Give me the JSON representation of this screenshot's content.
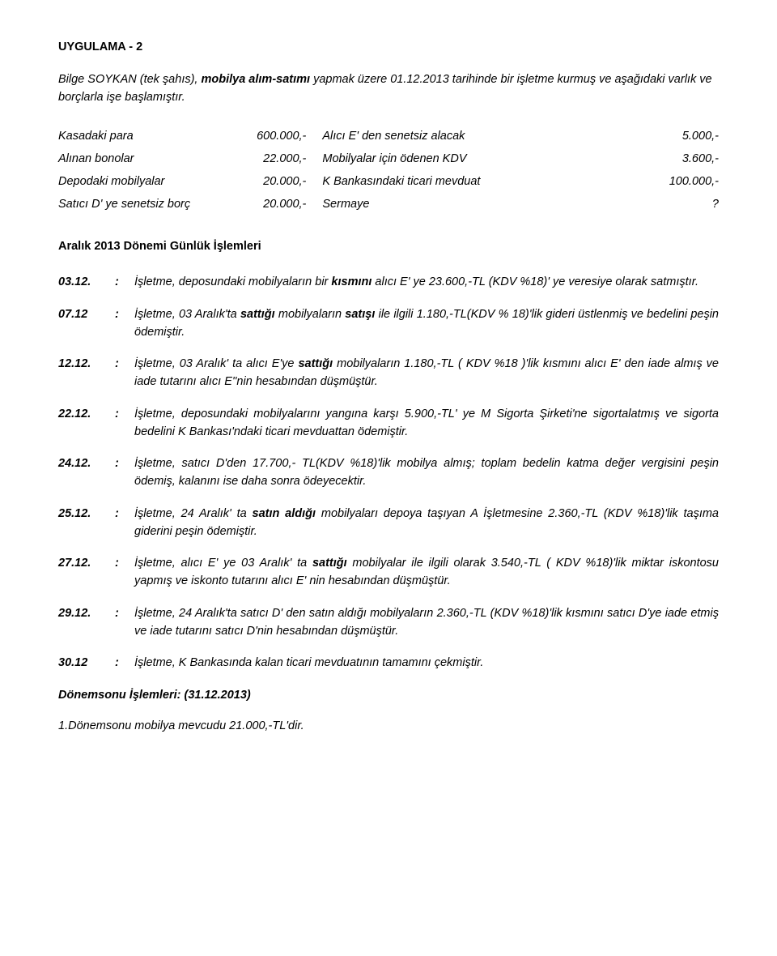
{
  "title": "UYGULAMA - 2",
  "intro": {
    "name": "Bilge SOYKAN (tek şahıs),",
    "purpose": "mobilya alım-satımı",
    "mid": " yapmak üzere 01.12.2013 tarihinde bir işletme kurmuş ve aşağıdaki varlık ve borçlarla işe başlamıştır."
  },
  "balances": {
    "rows": [
      {
        "l1": "Kasadaki para",
        "v1": "600.000,-",
        "l2": "Alıcı E' den senetsiz alacak",
        "v2": "5.000,-"
      },
      {
        "l1": "Alınan bonolar",
        "v1": "22.000,-",
        "l2": "Mobilyalar  için ödenen KDV",
        "v2": "3.600,-"
      },
      {
        "l1": "Depodaki mobilyalar",
        "v1": "20.000,-",
        "l2": "K Bankasındaki ticari mevduat",
        "v2": "100.000,-"
      },
      {
        "l1": "Satıcı D' ye senetsiz borç",
        "v1": "20.000,-",
        "l2": "Sermaye",
        "v2": "?"
      }
    ]
  },
  "section_heading": "Aralık 2013 Dönemi Günlük İşlemleri",
  "entries": [
    {
      "date": "03.12.",
      "parts": [
        {
          "t": "İşletme, deposundaki mobilyaların bir "
        },
        {
          "t": "kısmını",
          "b": true
        },
        {
          "t": " alıcı E' ye 23.600,-TL (KDV %18)' ye veresiye olarak satmıştır."
        }
      ]
    },
    {
      "date": "07.12",
      "parts": [
        {
          "t": "İşletme, 03 Aralık'ta "
        },
        {
          "t": "sattığı",
          "b": true
        },
        {
          "t": " mobilyaların "
        },
        {
          "t": "satışı",
          "b": true
        },
        {
          "t": " ile ilgili 1.180,-TL(KDV % 18)'lik gideri üstlenmiş ve bedelini peşin ödemiştir."
        }
      ]
    },
    {
      "date": "12.12.",
      "parts": [
        {
          "t": "İşletme, 03 Aralık' ta alıcı E'ye "
        },
        {
          "t": "sattığı",
          "b": true
        },
        {
          "t": " mobilyaların 1.180,-TL ( KDV %18 )'lik kısmını alıcı E' den iade almış ve iade tutarını alıcı E''nin hesabından düşmüştür."
        }
      ]
    },
    {
      "date": "22.12.",
      "parts": [
        {
          "t": "İşletme, deposundaki mobilyalarını yangına karşı 5.900,-TL' ye M Sigorta Şirketi'ne sigortalatmış ve sigorta bedelini K Bankası'ndaki  ticari mevduattan ödemiştir."
        }
      ]
    },
    {
      "date": "24.12.",
      "parts": [
        {
          "t": "İşletme, satıcı D'den 17.700,- TL(KDV %18)'lik mobilya almış; toplam bedelin katma değer vergisini peşin ödemiş, kalanını ise daha sonra ödeyecektir."
        }
      ]
    },
    {
      "date": "25.12.",
      "parts": [
        {
          "t": "İşletme, 24 Aralık' ta "
        },
        {
          "t": "satın aldığı",
          "b": true
        },
        {
          "t": " mobilyaları depoya taşıyan A İşletmesine 2.360,-TL (KDV %18)'lik taşıma giderini peşin ödemiştir."
        }
      ]
    },
    {
      "date": "27.12.",
      "parts": [
        {
          "t": "İşletme, alıcı E' ye 03 Aralık' ta "
        },
        {
          "t": "sattığı",
          "b": true
        },
        {
          "t": " mobilyalar ile ilgili olarak 3.540,-TL ( KDV %18)'lik miktar iskontosu yapmış ve iskonto tutarını alıcı E' nin  hesabından düşmüştür."
        }
      ]
    },
    {
      "date": "29.12.",
      "parts": [
        {
          "t": "İşletme, 24 Aralık'ta satıcı D' den satın aldığı mobilyaların 2.360,-TL (KDV %18)'lik kısmını satıcı D'ye iade etmiş ve iade tutarını satıcı D'nin hesabından düşmüştür."
        }
      ]
    },
    {
      "date": "30.12",
      "parts": [
        {
          "t": "İşletme,  K Bankasında kalan ticari mevduatının tamamını çekmiştir."
        }
      ]
    }
  ],
  "closing": {
    "heading": "Dönemsonu İşlemleri: (31.12.2013)",
    "item1": "1.Dönemsonu mobilya mevcudu  21.000,-TL'dir."
  }
}
